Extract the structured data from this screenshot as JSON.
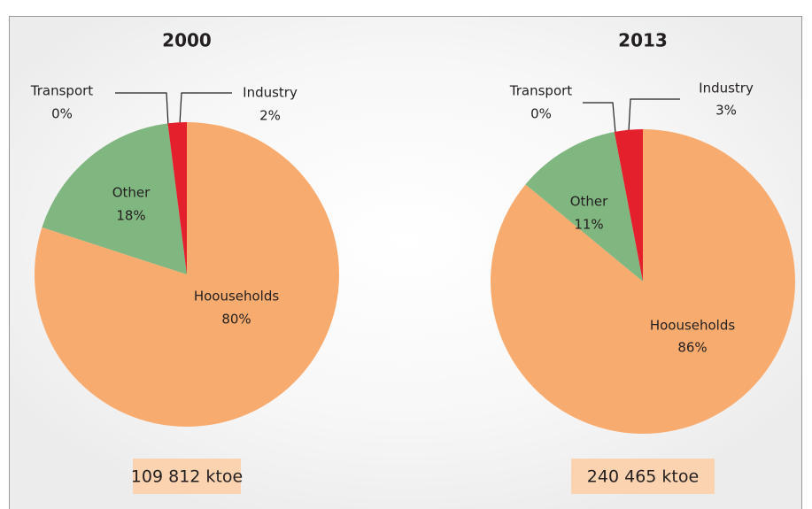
{
  "chart_data": [
    {
      "type": "pie",
      "title": "2000",
      "categories": [
        "Hoouseholds",
        "Other",
        "Transport",
        "Industry"
      ],
      "values": [
        80,
        18,
        0,
        2
      ],
      "value_labels": [
        "80%",
        "18%",
        "0%",
        "2%"
      ],
      "colors": [
        "#f8ab6e",
        "#80b680",
        "#4a7ab5",
        "#e3202b"
      ],
      "footer": "109 812 ktoe"
    },
    {
      "type": "pie",
      "title": "2013",
      "categories": [
        "Hoouseholds",
        "Other",
        "Transport",
        "Industry"
      ],
      "values": [
        86,
        11,
        0,
        3
      ],
      "value_labels": [
        "86%",
        "11%",
        "0%",
        "3%"
      ],
      "colors": [
        "#f8ab6e",
        "#80b680",
        "#4a7ab5",
        "#e3202b"
      ],
      "footer": "240 465 ktoe"
    }
  ]
}
